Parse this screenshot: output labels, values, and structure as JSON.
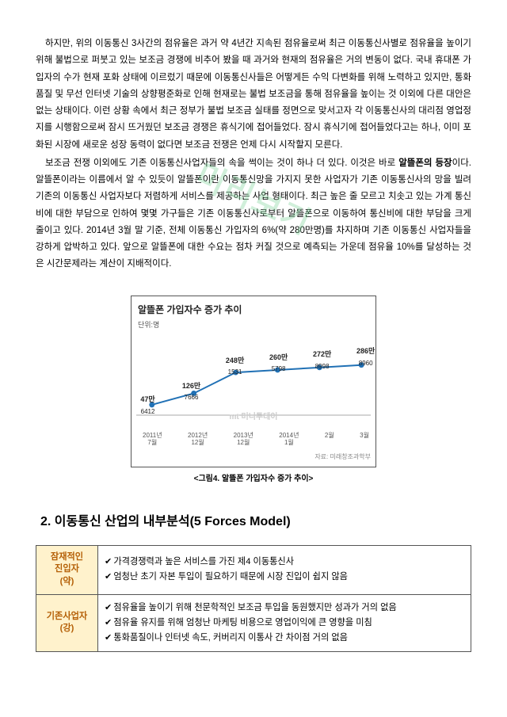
{
  "watermark": "미리보기",
  "para1": "하지만, 위의 이동통신 3사간의 점유율은 과거 약 4년간 지속된 점유율로써 최근 이동통신사별로 점유율을 높이기 위해 불법으로 퍼붓고 있는 보조금 경쟁에 비추어 봤을 때 과거와 현재의 점유율은 거의 변동이 없다. 국내 휴대폰 가입자의 수가 현재 포화 상태에 이르렀기 때문에 이동통신사들은 어떻게든 수익 다변화를 위해 노력하고 있지만, 통화 품질 및 무선 인터넷 기술의 상향평준화로 인해 현재로는 불법 보조금을 통해 점유율을 높이는 것 이외에 다른 대안은 없는 상태이다. 이런 상황 속에서 최근 정부가 불법 보조금 실태를 정면으로 맞서고자 각 이동통신사의 대리점 영업정지를 시행함으로써 잠시 뜨거웠던 보조금 경쟁은 휴식기에 접어들었다. 잠시 휴식기에 접어들었다고는 하나, 이미 포화된 시장에 새로운 성장 동력이 없다면 보조금 전쟁은 언제 다시 시작할지 모른다.",
  "para2a": "보조금 전쟁 이외에도 기존 이동통신사업자들의 속을 썩이는 것이 하나 더 있다. 이것은 바로 ",
  "para2b": "알뜰폰의 등장",
  "para2c": "이다. 알뜰폰이라는 이름에서 알 수 있듯이 알뜰폰이란 이동통신망을 가지지 못한 사업자가 기존 이동통신사의 망을 빌려 기존의 이동통신 사업자보다 저렴하게 서비스를 제공하는 사업 형태이다. 최근 높은 줄 모르고 치솟고 있는 가계 통신비에 대한 부담으로 인하여 몇몇 가구들은 기존 이동통신사로부터 알뜰폰으로 이동하여 통신비에 대한 부담을 크게 줄이고 있다. 2014년 3월 말 기준, 전체 이동통신 가입자의 6%(약 280만명)를 차지하며 기존 이동통신 사업자들을 강하게 압박하고 있다. 앞으로 알뜰폰에 대한 수요는 점차 커질 것으로 예측되는 가운데 점유율 10%를 달성하는 것은 시간문제라는 계산이 지배적이다.",
  "chart": {
    "title": "알뜰폰 가입자수 증가 추이",
    "unit": "단위:명",
    "points": [
      {
        "label": "47만",
        "sub": "6412",
        "xlabel": "2011년\n7월",
        "y": 0.1
      },
      {
        "label": "126만",
        "sub": "7666",
        "xlabel": "2012년\n12월",
        "y": 0.33
      },
      {
        "label": "248만",
        "sub": "1531",
        "xlabel": "2013년\n12월",
        "y": 0.75
      },
      {
        "label": "260만",
        "sub": "5798",
        "xlabel": "2014년\n1월",
        "y": 0.8
      },
      {
        "label": "272만",
        "sub": "8998",
        "xlabel": "2월",
        "y": 0.85
      },
      {
        "label": "286만",
        "sub": "8960",
        "xlabel": "3월",
        "y": 0.9
      }
    ],
    "line_color": "#2171b5",
    "marker_color": "#2171b5",
    "grid_color": "#cccccc",
    "source": "자료: 미래창조과학부",
    "mt_mark": "mt 머니투데이",
    "caption": "<그림4. 알뜰폰 가입자수 증가 추이>"
  },
  "section2_title": "2. 이동통신 산업의 내부분석(5 Forces Model)",
  "forces": [
    {
      "head": "잠재적인\n진입자\n(약)",
      "items": [
        "가격경쟁력과 높은 서비스를 가진 제4 이동통신사",
        "엄청난 초기 자본 투입이 필요하기 때문에 시장 진입이 쉽지 않음"
      ]
    },
    {
      "head": "기존사업자\n(강)",
      "items": [
        "점유율을 높이기 위해 천문학적인 보조금 투입을 동원했지만 성과가 거의 없음",
        "점유율 유지를 위해 엄청난 마케팅 비용으로 영업이익에 큰 영향을 미침",
        "통화품질이나 인터넷 속도, 커버리지 이통사 간 차이점 거의 없음"
      ]
    }
  ]
}
